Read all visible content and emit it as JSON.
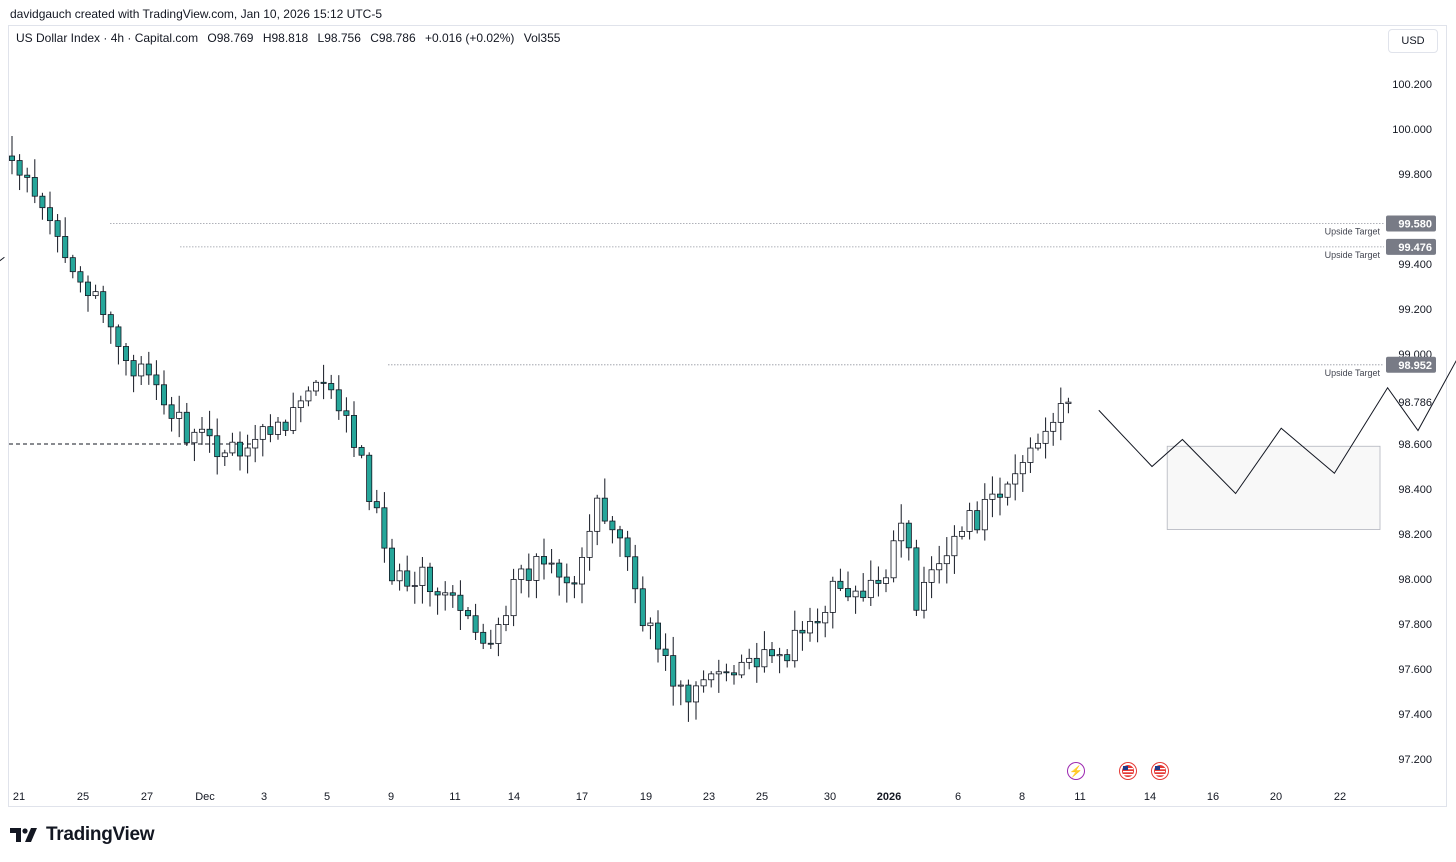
{
  "header": {
    "caption": "davidgauch created with TradingView.com, Jan 10, 2026 15:12 UTC-5",
    "symbol": "US Dollar Index · 4h · Capital.com",
    "open": "O98.769",
    "high": "H98.818",
    "low": "L98.756",
    "close": "C98.786",
    "change": "+0.016 (+0.02%)",
    "volume": "Vol355",
    "currency": "USD"
  },
  "brand": {
    "name": "TradingView",
    "logo_icon": "tradingview-logo-icon"
  },
  "events": [
    {
      "icon": "lightning-icon",
      "color": "#9c27b0"
    },
    {
      "icon": "us-flag-icon",
      "color": "#e53935"
    },
    {
      "icon": "us-flag-icon",
      "color": "#e53935"
    }
  ],
  "colors": {
    "up": "#ffffff",
    "down": "#26a69a",
    "wick": "#131722",
    "grid": "#e0e3eb"
  },
  "chart_data": {
    "type": "candlestick",
    "timeframe": "4h",
    "y_ticks": [
      "100.200",
      "100.000",
      "99.800",
      "99.400",
      "99.200",
      "99.000",
      "98.600",
      "98.400",
      "98.200",
      "98.000",
      "97.800",
      "97.600",
      "97.400",
      "97.200"
    ],
    "ylim": [
      97.1,
      100.35
    ],
    "x_ticks": [
      "21",
      "25",
      "27",
      "Dec",
      "3",
      "5",
      "9",
      "11",
      "14",
      "17",
      "19",
      "23",
      "25",
      "30",
      "2026",
      "6",
      "8",
      "11",
      "14",
      "16",
      "20",
      "22"
    ],
    "last_price": 98.786,
    "price_labels": [
      {
        "value": 99.58,
        "label": "99.580",
        "text": "Upside Target"
      },
      {
        "value": 99.476,
        "label": "99.476",
        "text": "Upside Target"
      },
      {
        "value": 98.952,
        "label": "98.952",
        "text": "Upside Target"
      }
    ],
    "dashed_level": 98.6,
    "trend_anchors": [
      {
        "t": 0,
        "p": 99.85
      },
      {
        "t": 4,
        "p": 99.62
      },
      {
        "t": 8,
        "p": 99.42
      },
      {
        "t": 12,
        "p": 99.15
      },
      {
        "t": 16,
        "p": 98.95
      },
      {
        "t": 20,
        "p": 98.78
      },
      {
        "t": 24,
        "p": 98.62
      },
      {
        "t": 28,
        "p": 98.58
      },
      {
        "t": 32,
        "p": 98.62
      },
      {
        "t": 36,
        "p": 98.72
      },
      {
        "t": 40,
        "p": 98.85
      },
      {
        "t": 43,
        "p": 98.78
      },
      {
        "t": 46,
        "p": 98.5
      },
      {
        "t": 50,
        "p": 98.05
      },
      {
        "t": 54,
        "p": 98.0
      },
      {
        "t": 58,
        "p": 97.9
      },
      {
        "t": 62,
        "p": 97.7
      },
      {
        "t": 66,
        "p": 97.95
      },
      {
        "t": 70,
        "p": 98.1
      },
      {
        "t": 74,
        "p": 98.02
      },
      {
        "t": 77,
        "p": 98.3
      },
      {
        "t": 80,
        "p": 98.2
      },
      {
        "t": 83,
        "p": 97.85
      },
      {
        "t": 86,
        "p": 97.62
      },
      {
        "t": 89,
        "p": 97.45
      },
      {
        "t": 92,
        "p": 97.58
      },
      {
        "t": 96,
        "p": 97.65
      },
      {
        "t": 100,
        "p": 97.62
      },
      {
        "t": 104,
        "p": 97.75
      },
      {
        "t": 108,
        "p": 97.95
      },
      {
        "t": 112,
        "p": 97.9
      },
      {
        "t": 115,
        "p": 98.05
      },
      {
        "t": 117,
        "p": 98.3
      },
      {
        "t": 119,
        "p": 97.88
      },
      {
        "t": 122,
        "p": 98.12
      },
      {
        "t": 126,
        "p": 98.25
      },
      {
        "t": 130,
        "p": 98.35
      },
      {
        "t": 134,
        "p": 98.58
      },
      {
        "t": 138,
        "p": 98.8
      },
      {
        "t": 139,
        "p": 98.786
      }
    ],
    "projection": [
      {
        "t": 143,
        "p": 98.75
      },
      {
        "t": 150,
        "p": 98.5
      },
      {
        "t": 154,
        "p": 98.62
      },
      {
        "t": 161,
        "p": 98.38
      },
      {
        "t": 167,
        "p": 98.67
      },
      {
        "t": 174,
        "p": 98.47
      },
      {
        "t": 181,
        "p": 98.85
      },
      {
        "t": 185,
        "p": 98.66
      },
      {
        "t": 191,
        "p": 99.03
      }
    ],
    "projection_box": {
      "t0": 152,
      "t1": 180,
      "p_low": 98.22,
      "p_high": 98.59
    },
    "left_fragment": [
      {
        "t": -6,
        "p": 99.3
      },
      {
        "t": -1,
        "p": 99.43
      }
    ]
  }
}
